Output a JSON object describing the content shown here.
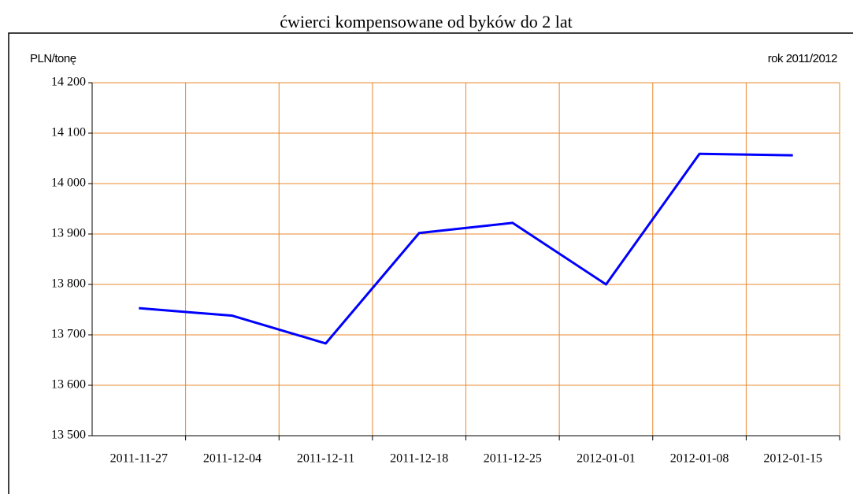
{
  "chart_data": {
    "type": "line",
    "title": "ćwierci kompensowane od byków do 2 lat",
    "y_label": "PLN/tonę",
    "annotation": "rok 2011/2012",
    "categories": [
      "2011-11-27",
      "2011-12-04",
      "2011-12-11",
      "2011-12-18",
      "2011-12-25",
      "2012-01-01",
      "2012-01-08",
      "2012-01-15"
    ],
    "series": [
      {
        "name": "ćwierci kompensowane od byków do 2 lat",
        "color": "#0000ff",
        "values": [
          13753,
          13738,
          13683,
          13902,
          13922,
          13800,
          14059,
          14056
        ]
      }
    ],
    "ylim": [
      13500,
      14200
    ],
    "yticks": [
      {
        "value": 13500,
        "label": "13 500"
      },
      {
        "value": 13600,
        "label": "13 600"
      },
      {
        "value": 13700,
        "label": "13 700"
      },
      {
        "value": 13800,
        "label": "13 800"
      },
      {
        "value": 13900,
        "label": "13 900"
      },
      {
        "value": 14000,
        "label": "14 000"
      },
      {
        "value": 14100,
        "label": "14 100"
      },
      {
        "value": 14200,
        "label": "14 200"
      }
    ],
    "grid": true,
    "grid_color": "#e8892f"
  }
}
